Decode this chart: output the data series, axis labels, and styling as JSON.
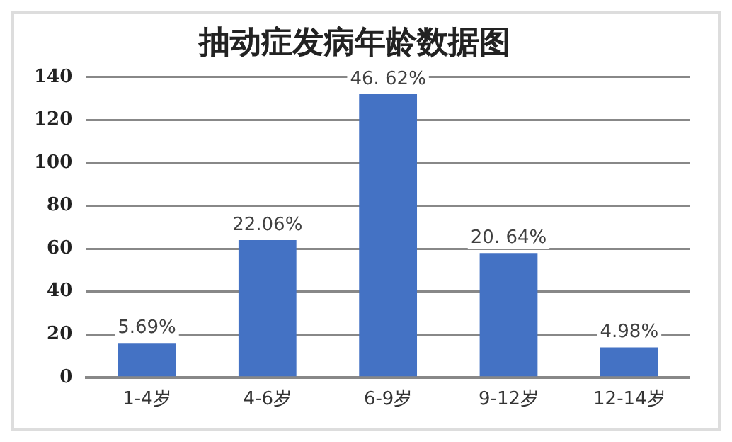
{
  "chart_data": {
    "type": "bar",
    "title": "抽动症发病年龄数据图",
    "categories": [
      "1-4岁",
      "4-6岁",
      "6-9岁",
      "9-12岁",
      "12-14岁"
    ],
    "values": [
      16,
      64,
      132,
      58,
      14
    ],
    "annotations": [
      {
        "text": "5.69%",
        "x": "1-4岁",
        "y": 16
      },
      {
        "text": "22.06%",
        "x": "4-6岁",
        "y": 64
      },
      {
        "text": "46. 62%",
        "x": "6-9岁",
        "y": 132
      },
      {
        "text": "20. 64%",
        "x": "9-12岁",
        "y": 58
      },
      {
        "text": "4.98%",
        "x": "12-14岁",
        "y": 14
      }
    ],
    "color": "#4472c4",
    "ylim": [
      0,
      140
    ],
    "yticks": [
      0,
      20,
      40,
      60,
      80,
      100,
      120,
      140
    ],
    "grid": "y"
  }
}
